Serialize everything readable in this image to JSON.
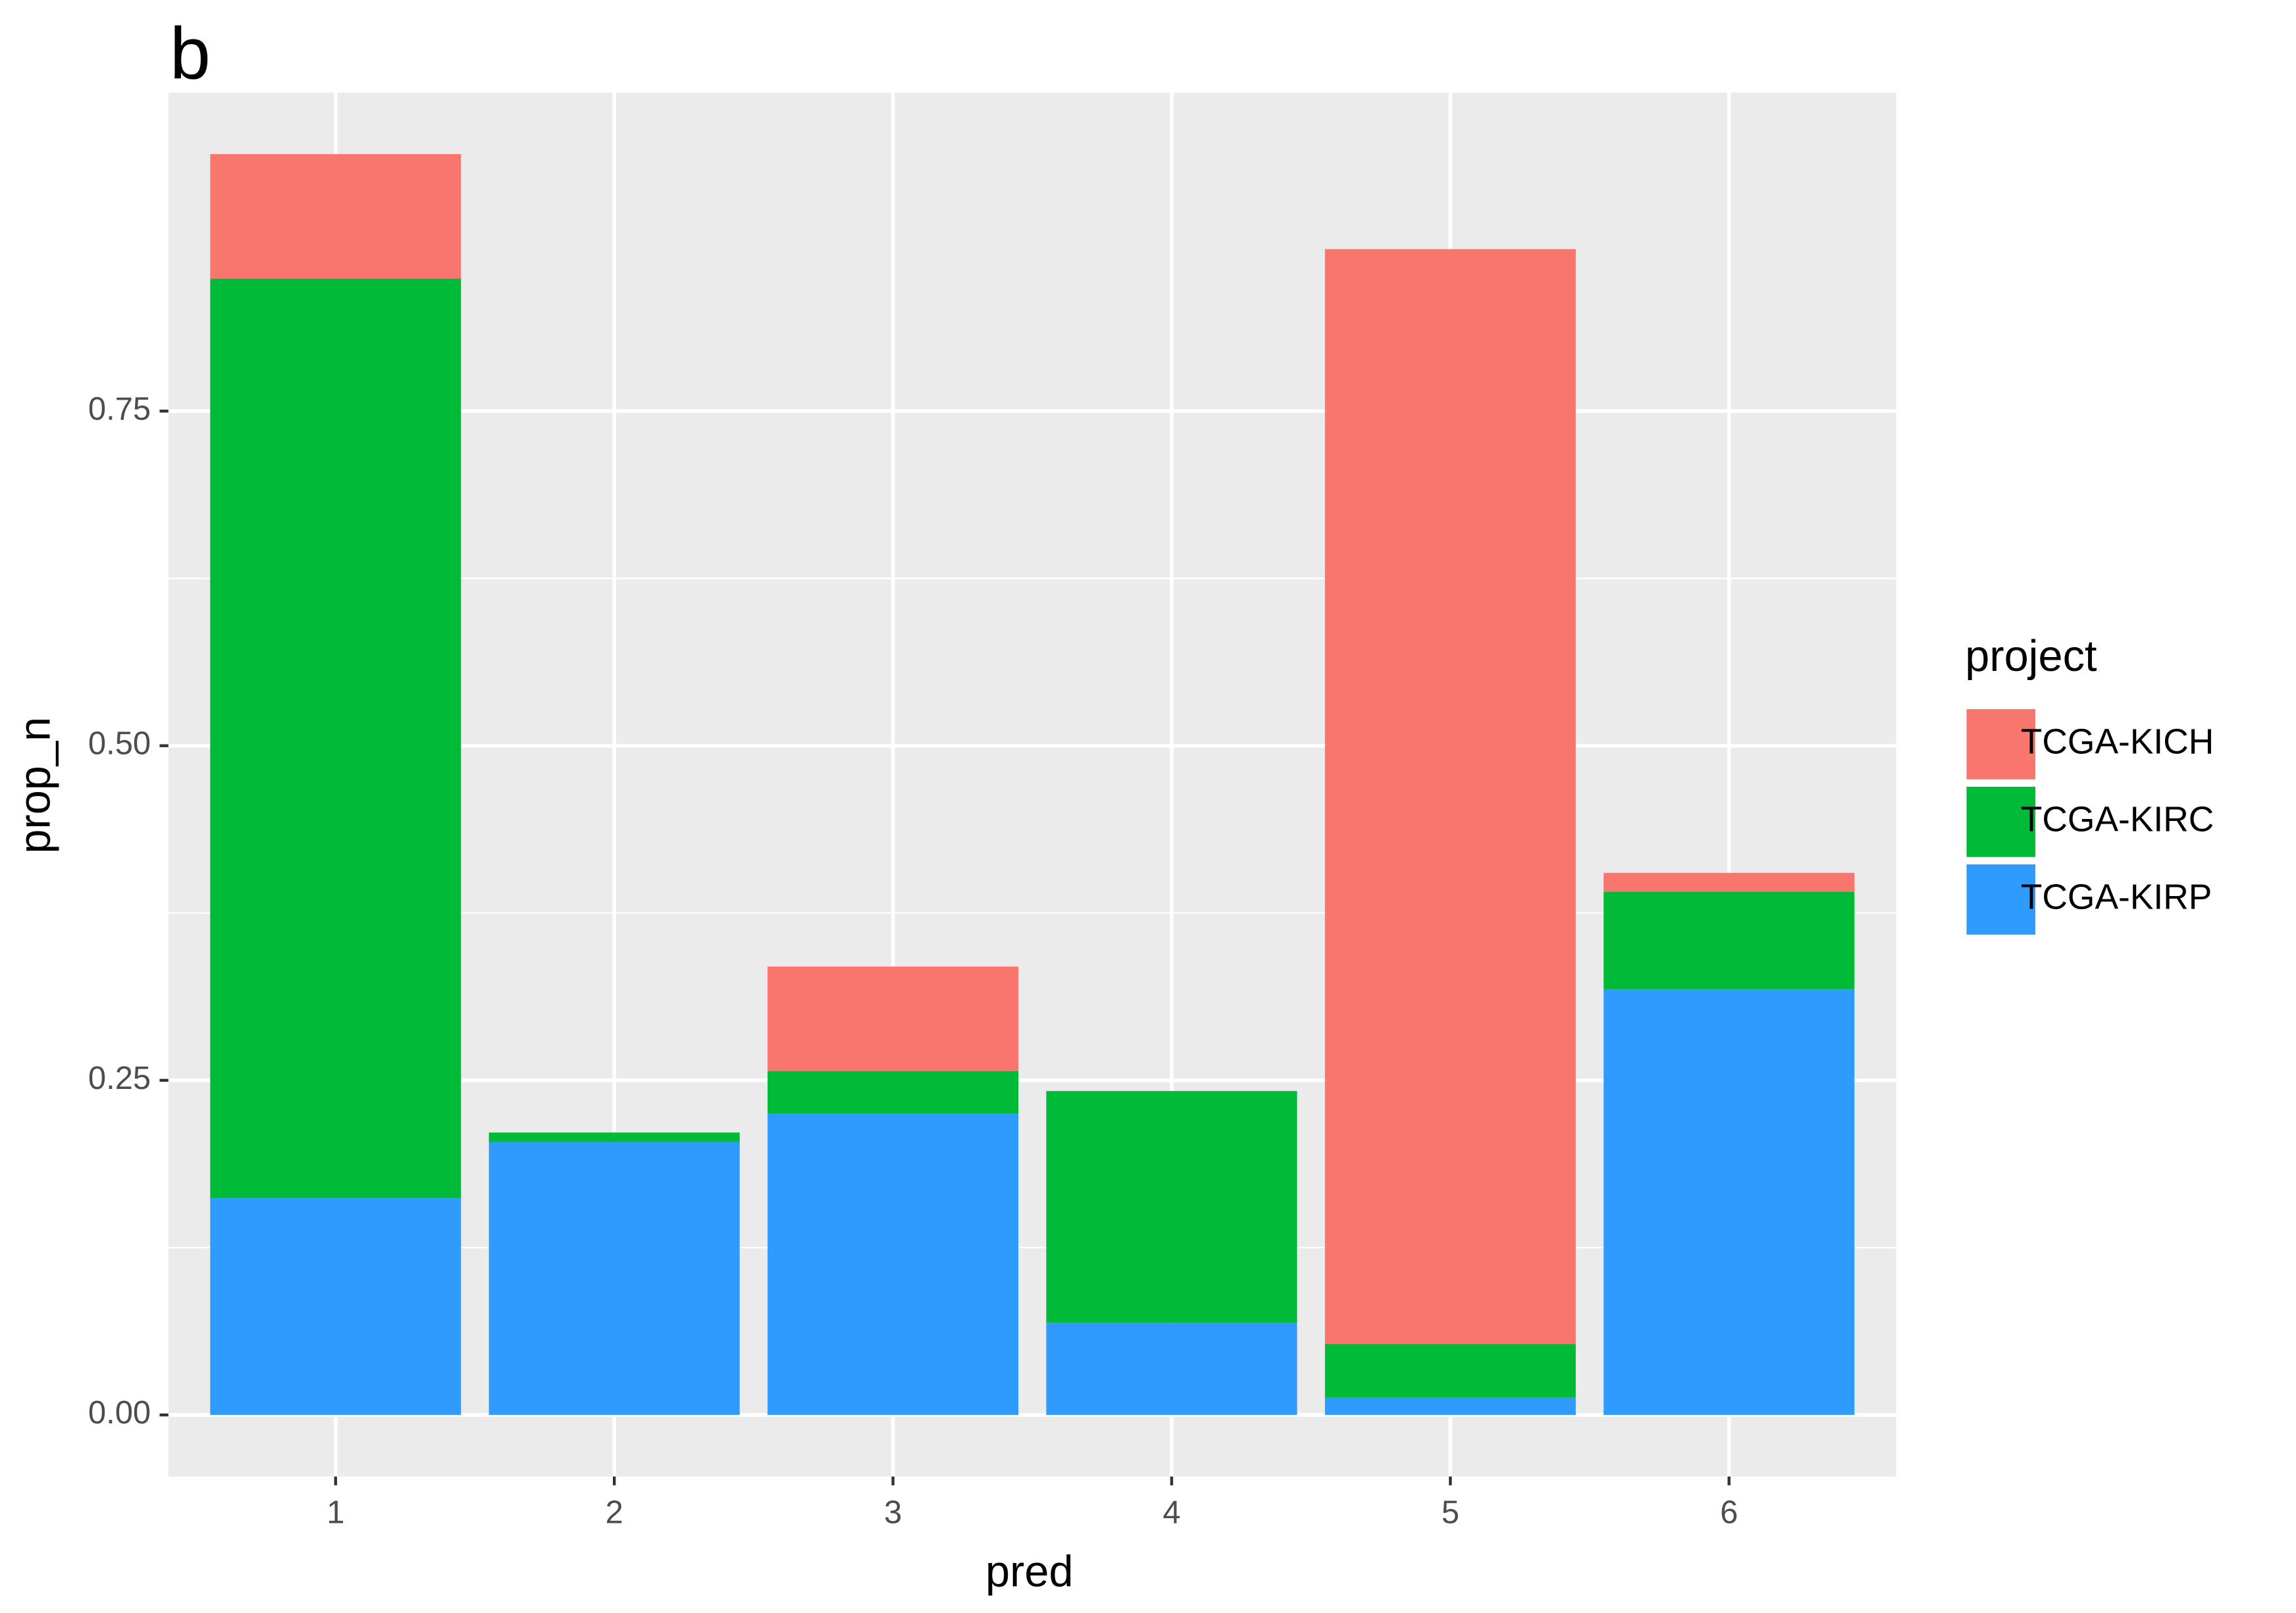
{
  "chart_data": {
    "type": "bar",
    "stacked": true,
    "panel_label": "b",
    "x_label": "pred",
    "y_label": "prop_n",
    "categories": [
      "1",
      "2",
      "3",
      "4",
      "5",
      "6"
    ],
    "series": [
      {
        "name": "TCGA-KICH",
        "color": "#f8766d",
        "values": [
          0.093,
          0,
          0.078,
          0,
          0.818,
          0.014
        ]
      },
      {
        "name": "TCGA-KIRC",
        "color": "#00ba38",
        "values": [
          0.687,
          0.007,
          0.032,
          0.173,
          0.04,
          0.073
        ]
      },
      {
        "name": "TCGA-KIRP",
        "color": "#2f9bff",
        "values": [
          0.162,
          0.204,
          0.225,
          0.069,
          0.013,
          0.318
        ]
      }
    ],
    "legend_title": "project",
    "legend_position": "right",
    "ylim": [
      -0.046,
      0.988
    ],
    "yticks": [
      {
        "value": 0,
        "label": "0.00"
      },
      0.25,
      {
        "value": 0.5,
        "label": "0.50"
      },
      0.75
    ],
    "grid": true,
    "minor_grid": true,
    "background": "#ebebeb"
  }
}
